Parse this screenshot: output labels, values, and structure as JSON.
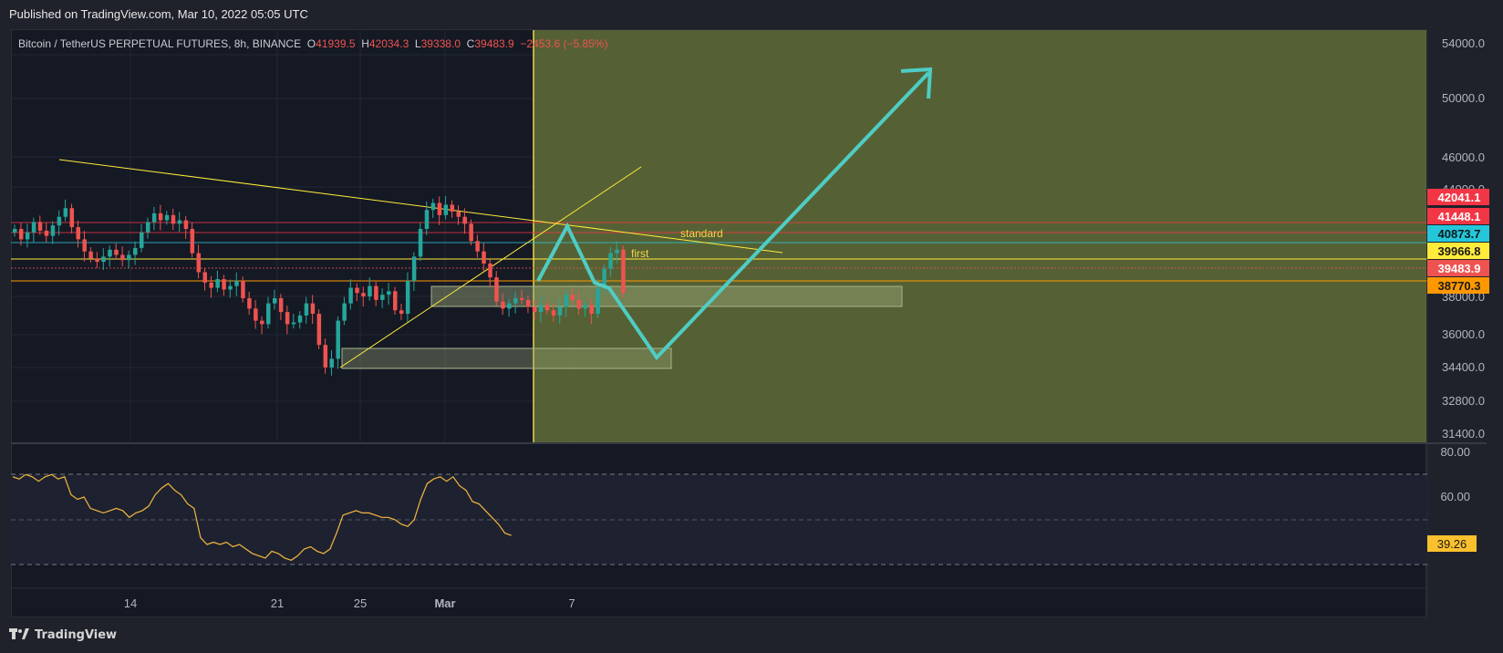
{
  "header": {
    "published": "Published on TradingView.com, Mar 10, 2022 05:05 UTC"
  },
  "legend": {
    "symbol": "Bitcoin / TetherUS PERPETUAL FUTURES, 8h, BINANCE",
    "o_label": "O",
    "o": "41939.5",
    "h_label": "H",
    "h": "42034.3",
    "l_label": "L",
    "l": "39338.0",
    "c_label": "C",
    "c": "39483.9",
    "change": "−2453.6 (−5.85%)"
  },
  "price_axis": [
    "54000.0",
    "50000.0",
    "46000.0",
    "44000.0",
    "38000.0",
    "36000.0",
    "34400.0",
    "32800.0",
    "31400.0"
  ],
  "price_badges": [
    {
      "text": "42041.1",
      "color": "#f23645"
    },
    {
      "text": "41448.1",
      "color": "#f23645"
    },
    {
      "text": "40873.7",
      "color": "#26c6da"
    },
    {
      "text": "39966.8",
      "color": "#ffeb3b"
    },
    {
      "text": "39483.9",
      "color": "#ef5350"
    },
    {
      "text": "38770.3",
      "color": "#ff9800"
    }
  ],
  "rsi_axis": [
    "80.00",
    "60.00"
  ],
  "rsi_badge": {
    "text": "39.26",
    "color": "#fbc02d"
  },
  "time_axis": [
    "14",
    "21",
    "25",
    "Mar",
    "7"
  ],
  "annotations": {
    "standard": "standard",
    "first": "first"
  },
  "colors": {
    "up": "#26a69a",
    "down": "#ef5350",
    "projection": "#4ecdc4",
    "trend": "#ffeb3b",
    "zone": "#6b7a3a"
  },
  "footer": {
    "logo": "TradingView",
    "logo_icon": "tradingview-logo-icon"
  }
}
